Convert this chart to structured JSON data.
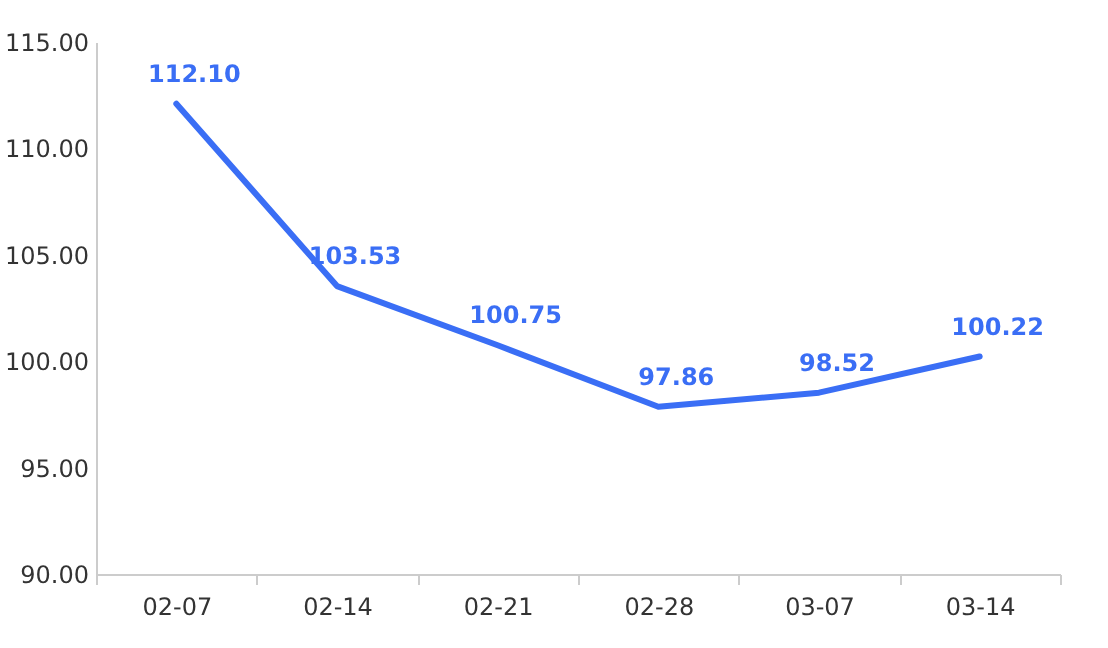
{
  "chart_data": {
    "type": "line",
    "categories": [
      "02-07",
      "02-14",
      "02-21",
      "02-28",
      "03-07",
      "03-14"
    ],
    "series": [
      {
        "color": "#3a6ef5",
        "values": [
          112.1,
          103.53,
          100.75,
          97.86,
          98.52,
          100.22
        ]
      }
    ],
    "ylim": [
      90,
      115
    ],
    "yticks": [
      {
        "value": 90,
        "label": "90.00"
      },
      {
        "value": 95,
        "label": "95.00"
      },
      {
        "value": 100,
        "label": "100.00"
      },
      {
        "value": 105,
        "label": "105.00"
      },
      {
        "value": 110,
        "label": "110.00"
      },
      {
        "value": 115,
        "label": "115.00"
      }
    ],
    "value_labels": [
      "112.10",
      "103.53",
      "100.75",
      "97.86",
      "98.52",
      "100.22"
    ],
    "grid": false,
    "legend": false,
    "marker": "none",
    "line_style": "solid"
  }
}
